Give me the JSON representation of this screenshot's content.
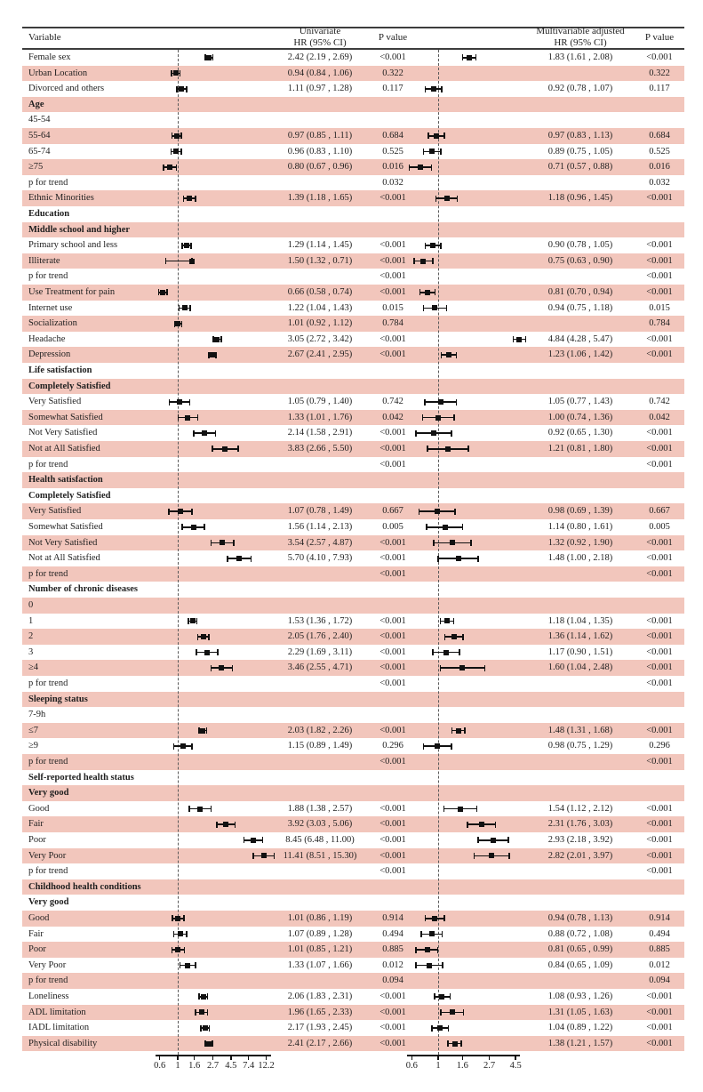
{
  "figure_header": {
    "variable_label": "Variable",
    "univariate_line1": "Univariate",
    "univariate_line2": "HR (95% CI)",
    "p_value_label_1": "P value",
    "multivariable_line1": "Multivariable adjusted",
    "multivariable_line2": "HR (95% CI)",
    "p_value_label_2": "P value"
  },
  "colors": {
    "stripe_pink": "#f2c6bc",
    "rule_dark": "#3d3d3d",
    "marker_black": "#111111",
    "dash_gray": "#5a5a5a",
    "text": "#1f1f1f"
  },
  "chart_data": {
    "type": "scatter",
    "subtype": "forest-plot",
    "title": "",
    "legend": "none",
    "grid": "off",
    "axes": {
      "univariate": {
        "scale": "log",
        "reference_value": 1,
        "tick_values": [
          0.6,
          1,
          1.6,
          2.7,
          4.5,
          7.4,
          12.2
        ],
        "tick_labels": [
          "0.6",
          "1",
          "1.6",
          "2.7",
          "4.5",
          "7.4",
          "12.2"
        ]
      },
      "multivariable": {
        "scale": "log",
        "reference_value": 1,
        "tick_values": [
          0.6,
          1,
          1.6,
          2.7,
          4.5
        ],
        "tick_labels": [
          "0.6",
          "1",
          "1.6",
          "2.7",
          "4.5"
        ]
      }
    },
    "rows": [
      {
        "label": "Female sex",
        "uni": {
          "hr": 2.42,
          "lo": 2.19,
          "hi": 2.69,
          "text": "2.42 (2.19 , 2.69)",
          "p": "<0.001"
        },
        "multi": {
          "hr": 1.83,
          "lo": 1.61,
          "hi": 2.08,
          "text": "1.83 (1.61 , 2.08)",
          "p": "<0.001"
        }
      },
      {
        "label": "Urban Location",
        "uni": {
          "hr": 0.94,
          "lo": 0.84,
          "hi": 1.06,
          "text": "0.94 (0.84 , 1.06)",
          "p": "0.322"
        },
        "multi": {
          "p": "0.322"
        }
      },
      {
        "label": "Divorced and others",
        "uni": {
          "hr": 1.11,
          "lo": 0.97,
          "hi": 1.28,
          "text": "1.11 (0.97 , 1.28)",
          "p": "0.117"
        },
        "multi": {
          "hr": 0.92,
          "lo": 0.78,
          "hi": 1.07,
          "text": "0.92 (0.78 , 1.07)",
          "p": "0.117"
        }
      },
      {
        "label": "Age",
        "bold": true
      },
      {
        "label": "45-54"
      },
      {
        "label": "55-64",
        "uni": {
          "hr": 0.97,
          "lo": 0.85,
          "hi": 1.11,
          "text": "0.97 (0.85 , 1.11)",
          "p": "0.684"
        },
        "multi": {
          "hr": 0.97,
          "lo": 0.83,
          "hi": 1.13,
          "text": "0.97 (0.83 , 1.13)",
          "p": "0.684"
        }
      },
      {
        "label": "65-74",
        "uni": {
          "hr": 0.96,
          "lo": 0.83,
          "hi": 1.1,
          "text": "0.96 (0.83 , 1.10)",
          "p": "0.525"
        },
        "multi": {
          "hr": 0.89,
          "lo": 0.75,
          "hi": 1.05,
          "text": "0.89 (0.75 , 1.05)",
          "p": "0.525"
        }
      },
      {
        "label": "≥75",
        "uni": {
          "hr": 0.8,
          "lo": 0.67,
          "hi": 0.96,
          "text": "0.80 (0.67 , 0.96)",
          "p": "0.016"
        },
        "multi": {
          "hr": 0.71,
          "lo": 0.57,
          "hi": 0.88,
          "text": "0.71 (0.57 , 0.88)",
          "p": "0.016"
        }
      },
      {
        "label": "p for trend",
        "uni": {
          "p": "0.032"
        },
        "multi": {
          "p": "0.032"
        }
      },
      {
        "label": "Ethnic Minorities",
        "uni": {
          "hr": 1.39,
          "lo": 1.18,
          "hi": 1.65,
          "text": "1.39 (1.18 , 1.65)",
          "p": "<0.001"
        },
        "multi": {
          "hr": 1.18,
          "lo": 0.96,
          "hi": 1.45,
          "text": "1.18 (0.96 , 1.45)",
          "p": "<0.001"
        }
      },
      {
        "label": "Education",
        "bold": true
      },
      {
        "label": "Middle school and higher",
        "bold": true
      },
      {
        "label": "Primary school and less",
        "uni": {
          "hr": 1.29,
          "lo": 1.14,
          "hi": 1.45,
          "text": "1.29 (1.14 , 1.45)",
          "p": "<0.001"
        },
        "multi": {
          "hr": 0.9,
          "lo": 0.78,
          "hi": 1.05,
          "text": "0.90 (0.78 , 1.05)",
          "p": "<0.001"
        }
      },
      {
        "label": "Illiterate",
        "uni": {
          "hr": 1.5,
          "lo": 1.32,
          "hi": 0.71,
          "text": "1.50 (1.32 , 0.71)",
          "p": "<0.001"
        },
        "multi": {
          "hr": 0.75,
          "lo": 0.63,
          "hi": 0.9,
          "text": "0.75 (0.63 , 0.90)",
          "p": "<0.001"
        }
      },
      {
        "label": "p for trend",
        "uni": {
          "p": "<0.001"
        },
        "multi": {
          "p": "<0.001"
        }
      },
      {
        "label": "Use Treatment for pain",
        "uni": {
          "hr": 0.66,
          "lo": 0.58,
          "hi": 0.74,
          "text": "0.66 (0.58 , 0.74)",
          "p": "<0.001"
        },
        "multi": {
          "hr": 0.81,
          "lo": 0.7,
          "hi": 0.94,
          "text": "0.81 (0.70 , 0.94)",
          "p": "<0.001"
        }
      },
      {
        "label": "Internet use",
        "uni": {
          "hr": 1.22,
          "lo": 1.04,
          "hi": 1.43,
          "text": "1.22 (1.04 , 1.43)",
          "p": "0.015"
        },
        "multi": {
          "hr": 0.94,
          "lo": 0.75,
          "hi": 1.18,
          "text": "0.94 (0.75 , 1.18)",
          "p": "0.015"
        }
      },
      {
        "label": "Socialization",
        "uni": {
          "hr": 1.01,
          "lo": 0.92,
          "hi": 1.12,
          "text": "1.01 (0.92 , 1.12)",
          "p": "0.784"
        },
        "multi": {
          "p": "0.784"
        }
      },
      {
        "label": "Headache",
        "uni": {
          "hr": 3.05,
          "lo": 2.72,
          "hi": 3.42,
          "text": "3.05 (2.72 , 3.42)",
          "p": "<0.001"
        },
        "multi": {
          "hr": 4.84,
          "lo": 4.28,
          "hi": 5.47,
          "text": "4.84 (4.28 , 5.47)",
          "p": "<0.001"
        }
      },
      {
        "label": "Depression",
        "uni": {
          "hr": 2.67,
          "lo": 2.41,
          "hi": 2.95,
          "text": "2.67 (2.41 , 2.95)",
          "p": "<0.001"
        },
        "multi": {
          "hr": 1.23,
          "lo": 1.06,
          "hi": 1.42,
          "text": "1.23 (1.06 , 1.42)",
          "p": "<0.001"
        }
      },
      {
        "label": "Life satisfaction",
        "bold": true
      },
      {
        "label": "Completely Satisfied",
        "bold": true
      },
      {
        "label": "Very Satisfied",
        "uni": {
          "hr": 1.05,
          "lo": 0.79,
          "hi": 1.4,
          "text": "1.05 (0.79 , 1.40)",
          "p": "0.742"
        },
        "multi": {
          "hr": 1.05,
          "lo": 0.77,
          "hi": 1.43,
          "text": "1.05 (0.77 , 1.43)",
          "p": "0.742"
        }
      },
      {
        "label": "Somewhat Satisfied",
        "uni": {
          "hr": 1.33,
          "lo": 1.01,
          "hi": 1.76,
          "text": "1.33 (1.01 , 1.76)",
          "p": "0.042"
        },
        "multi": {
          "hr": 1.0,
          "lo": 0.74,
          "hi": 1.36,
          "text": "1.00 (0.74 , 1.36)",
          "p": "0.042"
        }
      },
      {
        "label": "Not Very Satisfied",
        "uni": {
          "hr": 2.14,
          "lo": 1.58,
          "hi": 2.91,
          "text": "2.14 (1.58 , 2.91)",
          "p": "<0.001"
        },
        "multi": {
          "hr": 0.92,
          "lo": 0.65,
          "hi": 1.3,
          "text": "0.92 (0.65 , 1.30)",
          "p": "<0.001"
        }
      },
      {
        "label": "Not at All Satisfied",
        "uni": {
          "hr": 3.83,
          "lo": 2.66,
          "hi": 5.5,
          "text": "3.83 (2.66 , 5.50)",
          "p": "<0.001"
        },
        "multi": {
          "hr": 1.21,
          "lo": 0.81,
          "hi": 1.8,
          "text": "1.21 (0.81 , 1.80)",
          "p": "<0.001"
        }
      },
      {
        "label": "p for trend",
        "uni": {
          "p": "<0.001"
        },
        "multi": {
          "p": "<0.001"
        }
      },
      {
        "label": "Health satisfaction",
        "bold": true
      },
      {
        "label": "Completely Satisfied",
        "bold": true
      },
      {
        "label": "Very Satisfied",
        "uni": {
          "hr": 1.07,
          "lo": 0.78,
          "hi": 1.49,
          "text": "1.07 (0.78 , 1.49)",
          "p": "0.667"
        },
        "multi": {
          "hr": 0.98,
          "lo": 0.69,
          "hi": 1.39,
          "text": "0.98 (0.69 , 1.39)",
          "p": "0.667"
        }
      },
      {
        "label": "Somewhat Satisfied",
        "uni": {
          "hr": 1.56,
          "lo": 1.14,
          "hi": 2.13,
          "text": "1.56 (1.14 , 2.13)",
          "p": "0.005"
        },
        "multi": {
          "hr": 1.14,
          "lo": 0.8,
          "hi": 1.61,
          "text": "1.14 (0.80 , 1.61)",
          "p": "0.005"
        }
      },
      {
        "label": "Not Very Satisfied",
        "uni": {
          "hr": 3.54,
          "lo": 2.57,
          "hi": 4.87,
          "text": "3.54 (2.57 , 4.87)",
          "p": "<0.001"
        },
        "multi": {
          "hr": 1.32,
          "lo": 0.92,
          "hi": 1.9,
          "text": "1.32 (0.92 , 1.90)",
          "p": "<0.001"
        }
      },
      {
        "label": "Not at All Satisfied",
        "uni": {
          "hr": 5.7,
          "lo": 4.1,
          "hi": 7.93,
          "text": "5.70 (4.10 , 7.93)",
          "p": "<0.001"
        },
        "multi": {
          "hr": 1.48,
          "lo": 1.0,
          "hi": 2.18,
          "text": "1.48 (1.00 , 2.18)",
          "p": "<0.001"
        }
      },
      {
        "label": "p for trend",
        "uni": {
          "p": "<0.001"
        },
        "multi": {
          "p": "<0.001"
        }
      },
      {
        "label": "Number of chronic diseases",
        "bold": true
      },
      {
        "label": "0"
      },
      {
        "label": "1",
        "uni": {
          "hr": 1.53,
          "lo": 1.36,
          "hi": 1.72,
          "text": "1.53 (1.36 , 1.72)",
          "p": "<0.001"
        },
        "multi": {
          "hr": 1.18,
          "lo": 1.04,
          "hi": 1.35,
          "text": "1.18 (1.04 , 1.35)",
          "p": "<0.001"
        }
      },
      {
        "label": "2",
        "uni": {
          "hr": 2.05,
          "lo": 1.76,
          "hi": 2.4,
          "text": "2.05 (1.76 , 2.40)",
          "p": "<0.001"
        },
        "multi": {
          "hr": 1.36,
          "lo": 1.14,
          "hi": 1.62,
          "text": "1.36 (1.14 , 1.62)",
          "p": "<0.001"
        }
      },
      {
        "label": "3",
        "uni": {
          "hr": 2.29,
          "lo": 1.69,
          "hi": 3.11,
          "text": "2.29 (1.69 , 3.11)",
          "p": "<0.001"
        },
        "multi": {
          "hr": 1.17,
          "lo": 0.9,
          "hi": 1.51,
          "text": "1.17 (0.90 , 1.51)",
          "p": "<0.001"
        }
      },
      {
        "label": "≥4",
        "uni": {
          "hr": 3.46,
          "lo": 2.55,
          "hi": 4.71,
          "text": "3.46 (2.55 , 4.71)",
          "p": "<0.001"
        },
        "multi": {
          "hr": 1.6,
          "lo": 1.04,
          "hi": 2.48,
          "text": "1.60 (1.04 , 2.48)",
          "p": "<0.001"
        }
      },
      {
        "label": "p for trend",
        "uni": {
          "p": "<0.001"
        },
        "multi": {
          "p": "<0.001"
        }
      },
      {
        "label": "Sleeping status",
        "bold": true
      },
      {
        "label": "7-9h"
      },
      {
        "label": "≤7",
        "uni": {
          "hr": 2.03,
          "lo": 1.82,
          "hi": 2.26,
          "text": "2.03 (1.82 , 2.26)",
          "p": "<0.001"
        },
        "multi": {
          "hr": 1.48,
          "lo": 1.31,
          "hi": 1.68,
          "text": "1.48 (1.31 , 1.68)",
          "p": "<0.001"
        }
      },
      {
        "label": "≥9",
        "uni": {
          "hr": 1.15,
          "lo": 0.89,
          "hi": 1.49,
          "text": "1.15 (0.89 , 1.49)",
          "p": "0.296"
        },
        "multi": {
          "hr": 0.98,
          "lo": 0.75,
          "hi": 1.29,
          "text": "0.98 (0.75 , 1.29)",
          "p": "0.296"
        }
      },
      {
        "label": "p for trend",
        "uni": {
          "p": "<0.001"
        },
        "multi": {
          "p": "<0.001"
        }
      },
      {
        "label": "Self-reported health status",
        "bold": true
      },
      {
        "label": "Very good",
        "bold": true
      },
      {
        "label": "Good",
        "uni": {
          "hr": 1.88,
          "lo": 1.38,
          "hi": 2.57,
          "text": "1.88 (1.38 , 2.57)",
          "p": "<0.001"
        },
        "multi": {
          "hr": 1.54,
          "lo": 1.12,
          "hi": 2.12,
          "text": "1.54 (1.12 , 2.12)",
          "p": "<0.001"
        }
      },
      {
        "label": "Fair",
        "uni": {
          "hr": 3.92,
          "lo": 3.03,
          "hi": 5.06,
          "text": "3.92 (3.03 , 5.06)",
          "p": "<0.001"
        },
        "multi": {
          "hr": 2.31,
          "lo": 1.76,
          "hi": 3.03,
          "text": "2.31 (1.76 , 3.03)",
          "p": "<0.001"
        }
      },
      {
        "label": "Poor",
        "uni": {
          "hr": 8.45,
          "lo": 6.48,
          "hi": 11.0,
          "text": "8.45 (6.48 , 11.00)",
          "p": "<0.001"
        },
        "multi": {
          "hr": 2.93,
          "lo": 2.18,
          "hi": 3.92,
          "text": "2.93 (2.18 , 3.92)",
          "p": "<0.001"
        }
      },
      {
        "label": "Very Poor",
        "uni": {
          "hr": 11.41,
          "lo": 8.51,
          "hi": 15.3,
          "text": "11.41 (8.51 , 15.30)",
          "p": "<0.001"
        },
        "multi": {
          "hr": 2.82,
          "lo": 2.01,
          "hi": 3.97,
          "text": "2.82 (2.01 , 3.97)",
          "p": "<0.001"
        }
      },
      {
        "label": "p for trend",
        "uni": {
          "p": "<0.001"
        },
        "multi": {
          "p": "<0.001"
        }
      },
      {
        "label": "Childhood health conditions",
        "bold": true
      },
      {
        "label": "Very good",
        "bold": true
      },
      {
        "label": "Good",
        "uni": {
          "hr": 1.01,
          "lo": 0.86,
          "hi": 1.19,
          "text": "1.01 (0.86 , 1.19)",
          "p": "0.914"
        },
        "multi": {
          "hr": 0.94,
          "lo": 0.78,
          "hi": 1.13,
          "text": "0.94 (0.78 , 1.13)",
          "p": "0.914"
        }
      },
      {
        "label": "Fair",
        "uni": {
          "hr": 1.07,
          "lo": 0.89,
          "hi": 1.28,
          "text": "1.07 (0.89 , 1.28)",
          "p": "0.494"
        },
        "multi": {
          "hr": 0.88,
          "lo": 0.72,
          "hi": 1.08,
          "text": "0.88 (0.72 , 1.08)",
          "p": "0.494"
        }
      },
      {
        "label": "Poor",
        "uni": {
          "hr": 1.01,
          "lo": 0.85,
          "hi": 1.21,
          "text": "1.01 (0.85 , 1.21)",
          "p": "0.885"
        },
        "multi": {
          "hr": 0.81,
          "lo": 0.65,
          "hi": 0.99,
          "text": "0.81 (0.65 , 0.99)",
          "p": "0.885"
        }
      },
      {
        "label": "Very Poor",
        "uni": {
          "hr": 1.33,
          "lo": 1.07,
          "hi": 1.66,
          "text": "1.33 (1.07 , 1.66)",
          "p": "0.012"
        },
        "multi": {
          "hr": 0.84,
          "lo": 0.65,
          "hi": 1.09,
          "text": "0.84 (0.65 , 1.09)",
          "p": "0.012"
        }
      },
      {
        "label": "p for trend",
        "uni": {
          "p": "0.094"
        },
        "multi": {
          "p": "0.094"
        }
      },
      {
        "label": "Loneliness",
        "uni": {
          "hr": 2.06,
          "lo": 1.83,
          "hi": 2.31,
          "text": "2.06 (1.83 , 2.31)",
          "p": "<0.001"
        },
        "multi": {
          "hr": 1.08,
          "lo": 0.93,
          "hi": 1.26,
          "text": "1.08 (0.93 , 1.26)",
          "p": "<0.001"
        }
      },
      {
        "label": "ADL limitation",
        "uni": {
          "hr": 1.96,
          "lo": 1.65,
          "hi": 2.33,
          "text": "1.96 (1.65 , 2.33)",
          "p": "<0.001"
        },
        "multi": {
          "hr": 1.31,
          "lo": 1.05,
          "hi": 1.63,
          "text": "1.31 (1.05 , 1.63)",
          "p": "<0.001"
        }
      },
      {
        "label": "IADL limitation",
        "uni": {
          "hr": 2.17,
          "lo": 1.93,
          "hi": 2.45,
          "text": "2.17 (1.93 , 2.45)",
          "p": "<0.001"
        },
        "multi": {
          "hr": 1.04,
          "lo": 0.89,
          "hi": 1.22,
          "text": "1.04 (0.89 , 1.22)",
          "p": "<0.001"
        }
      },
      {
        "label": "Physical disability",
        "uni": {
          "hr": 2.41,
          "lo": 2.17,
          "hi": 2.66,
          "text": "2.41 (2.17 , 2.66)",
          "p": "<0.001"
        },
        "multi": {
          "hr": 1.38,
          "lo": 1.21,
          "hi": 1.57,
          "text": "1.38 (1.21 , 1.57)",
          "p": "<0.001"
        }
      }
    ]
  }
}
